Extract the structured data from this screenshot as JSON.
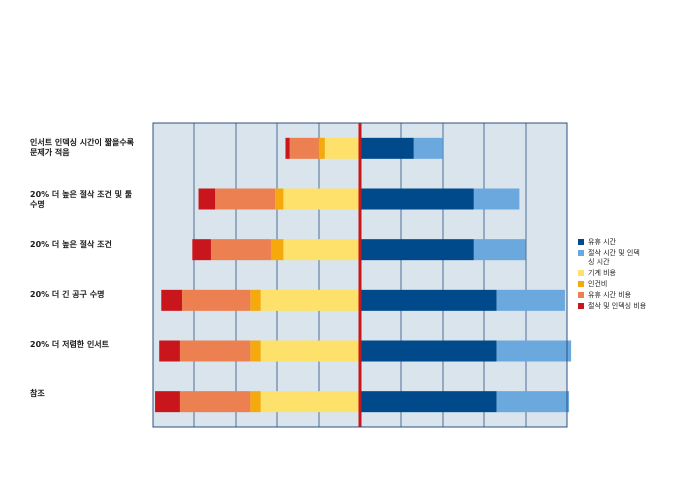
{
  "chart_data": {
    "type": "bar",
    "orientation": "horizontal-diverging",
    "title": "",
    "xlabel": "",
    "ylabel": "",
    "grid": true,
    "legend_position": "right",
    "categories": [
      "인서트 인덱싱 시간이 짧을수록\n문제가 적음",
      "20% 더 높은 절삭 조건 및 툴\n수명",
      "20% 더 높은 절삭 조건",
      "20% 더 긴 공구 수명",
      "20% 더 저렴한 인서트",
      "참조"
    ],
    "series": [
      {
        "name": "유휴 시간",
        "side": "right",
        "color": "#004a8c",
        "values": [
          0.26,
          0.55,
          0.55,
          0.66,
          0.66,
          0.66
        ]
      },
      {
        "name": "절삭 시간 및 인덱싱 시간",
        "side": "right",
        "color": "#6aa8de",
        "values": [
          0.14,
          0.22,
          0.25,
          0.33,
          0.36,
          0.35
        ]
      },
      {
        "name": "기계 비용",
        "side": "left",
        "color": "#fde16a",
        "values": [
          0.17,
          0.37,
          0.37,
          0.48,
          0.48,
          0.48
        ]
      },
      {
        "name": "인건비",
        "side": "left",
        "color": "#f5a90d",
        "values": [
          0.03,
          0.04,
          0.06,
          0.05,
          0.05,
          0.05
        ]
      },
      {
        "name": "유휴 시간 비용",
        "side": "left",
        "color": "#ec8050",
        "values": [
          0.14,
          0.29,
          0.29,
          0.33,
          0.34,
          0.34
        ]
      },
      {
        "name": "절삭 및 인덱싱 비용",
        "side": "left",
        "color": "#c8161c",
        "values": [
          0.02,
          0.08,
          0.09,
          0.1,
          0.1,
          0.12
        ]
      }
    ],
    "xlim": [
      -1,
      1
    ],
    "zero_line_color": "#c8161c"
  },
  "legend": {
    "items": [
      {
        "label": "유휴 시간",
        "color": "#004a8c"
      },
      {
        "label": "절삭 시간 및 인덱\n싱 시간",
        "color": "#6aa8de"
      },
      {
        "label": "기계 비용",
        "color": "#fde16a"
      },
      {
        "label": "인건비",
        "color": "#f5a90d"
      },
      {
        "label": "유휴 시간 비용",
        "color": "#ec8050"
      },
      {
        "label": "절삭 및 인덱싱 비용",
        "color": "#c8161c"
      }
    ]
  }
}
